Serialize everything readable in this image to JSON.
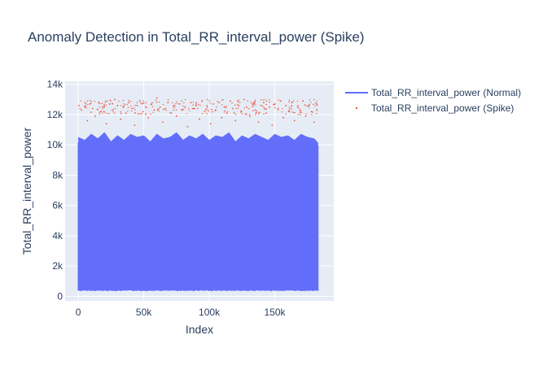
{
  "chart_data": {
    "type": "line",
    "title": "Anomaly Detection in Total_RR_interval_power (Spike)",
    "xlabel": "Index",
    "ylabel": "Total_RR_interval_power",
    "xlim": [
      -10000,
      195000
    ],
    "ylim": [
      -300,
      14200
    ],
    "x_ticks": [
      0,
      50000,
      100000,
      150000
    ],
    "x_tick_labels": [
      "0",
      "50k",
      "100k",
      "150k"
    ],
    "y_ticks": [
      0,
      2000,
      4000,
      6000,
      8000,
      10000,
      12000,
      14000
    ],
    "y_tick_labels": [
      "0",
      "2k",
      "4k",
      "6k",
      "8k",
      "10k",
      "12k",
      "14k"
    ],
    "grid": true,
    "legend_position": "right",
    "colors": {
      "normal": "#636efa",
      "spike": "#ef553b",
      "plot_bg": "#e5ecf6",
      "text": "#2a3f5f"
    },
    "series": [
      {
        "name": "Total_RR_interval_power (Normal)",
        "mode": "lines",
        "x_range": [
          0,
          183000
        ],
        "min_value": 400,
        "typical_max": 10200,
        "peak_max": 10800,
        "sampled_upper_envelope": [
          [
            0,
            10500
          ],
          [
            5000,
            10300
          ],
          [
            10000,
            10700
          ],
          [
            15000,
            10400
          ],
          [
            20000,
            10800
          ],
          [
            25000,
            10200
          ],
          [
            30000,
            10600
          ],
          [
            35000,
            10300
          ],
          [
            40000,
            10700
          ],
          [
            45000,
            10500
          ],
          [
            50000,
            10600
          ],
          [
            55000,
            10200
          ],
          [
            60000,
            10700
          ],
          [
            65000,
            10400
          ],
          [
            70000,
            10500
          ],
          [
            75000,
            10800
          ],
          [
            80000,
            10300
          ],
          [
            85000,
            10600
          ],
          [
            90000,
            10400
          ],
          [
            95000,
            10700
          ],
          [
            100000,
            10300
          ],
          [
            105000,
            10600
          ],
          [
            110000,
            10500
          ],
          [
            115000,
            10800
          ],
          [
            120000,
            10200
          ],
          [
            125000,
            10600
          ],
          [
            130000,
            10400
          ],
          [
            135000,
            10700
          ],
          [
            140000,
            10500
          ],
          [
            145000,
            10300
          ],
          [
            150000,
            10700
          ],
          [
            155000,
            10500
          ],
          [
            160000,
            10600
          ],
          [
            165000,
            10300
          ],
          [
            170000,
            10700
          ],
          [
            175000,
            10500
          ],
          [
            180000,
            10400
          ],
          [
            183000,
            10100
          ]
        ]
      },
      {
        "name": "Total_RR_interval_power (Spike)",
        "mode": "markers",
        "x_range": [
          0,
          183000
        ],
        "y_range": [
          10600,
          13300
        ],
        "dense_band": [
          12000,
          13000
        ],
        "sampled_points": [
          [
            500,
            12600
          ],
          [
            2500,
            12300
          ],
          [
            5000,
            12500
          ],
          [
            7000,
            11600
          ],
          [
            9000,
            12700
          ],
          [
            11000,
            12400
          ],
          [
            13000,
            11900
          ],
          [
            15500,
            12800
          ],
          [
            17500,
            12200
          ],
          [
            19500,
            12500
          ],
          [
            21500,
            11400
          ],
          [
            24000,
            12700
          ],
          [
            26000,
            12300
          ],
          [
            28000,
            13000
          ],
          [
            30000,
            12600
          ],
          [
            32500,
            11700
          ],
          [
            34500,
            12500
          ],
          [
            36500,
            12100
          ],
          [
            38500,
            12800
          ],
          [
            41000,
            12400
          ],
          [
            43000,
            11300
          ],
          [
            45000,
            12600
          ],
          [
            47000,
            12900
          ],
          [
            49500,
            12200
          ],
          [
            51500,
            12500
          ],
          [
            53500,
            11800
          ],
          [
            56000,
            12700
          ],
          [
            58000,
            12300
          ],
          [
            60000,
            13100
          ],
          [
            62500,
            12500
          ],
          [
            64500,
            11500
          ],
          [
            66500,
            12400
          ],
          [
            68500,
            12800
          ],
          [
            71000,
            12100
          ],
          [
            73000,
            12600
          ],
          [
            75000,
            11900
          ],
          [
            77500,
            12700
          ],
          [
            79500,
            12300
          ],
          [
            81500,
            12500
          ],
          [
            83500,
            11200
          ],
          [
            86000,
            12800
          ],
          [
            88000,
            12400
          ],
          [
            90000,
            12600
          ],
          [
            92500,
            11700
          ],
          [
            94500,
            12900
          ],
          [
            96500,
            12200
          ],
          [
            98500,
            12500
          ],
          [
            101000,
            11400
          ],
          [
            103000,
            12700
          ],
          [
            105000,
            12300
          ],
          [
            107500,
            12800
          ],
          [
            109500,
            11800
          ],
          [
            111500,
            12500
          ],
          [
            113500,
            12100
          ],
          [
            116000,
            12900
          ],
          [
            118000,
            12400
          ],
          [
            120000,
            11600
          ],
          [
            122500,
            12600
          ],
          [
            124500,
            12200
          ],
          [
            126500,
            13000
          ],
          [
            128500,
            12500
          ],
          [
            131000,
            11900
          ],
          [
            133000,
            12700
          ],
          [
            135000,
            12300
          ],
          [
            137500,
            11500
          ],
          [
            139500,
            12600
          ],
          [
            141500,
            12800
          ],
          [
            143500,
            12100
          ],
          [
            146000,
            12500
          ],
          [
            148000,
            11300
          ],
          [
            150000,
            12700
          ],
          [
            152500,
            12400
          ],
          [
            154500,
            12900
          ],
          [
            156500,
            11800
          ],
          [
            158500,
            12600
          ],
          [
            161000,
            12200
          ],
          [
            163000,
            12800
          ],
          [
            165000,
            11600
          ],
          [
            167500,
            12500
          ],
          [
            169500,
            12300
          ],
          [
            171500,
            12900
          ],
          [
            173500,
            11900
          ],
          [
            176000,
            12600
          ],
          [
            178000,
            12200
          ],
          [
            180000,
            11500
          ],
          [
            182000,
            12700
          ]
        ]
      }
    ]
  }
}
